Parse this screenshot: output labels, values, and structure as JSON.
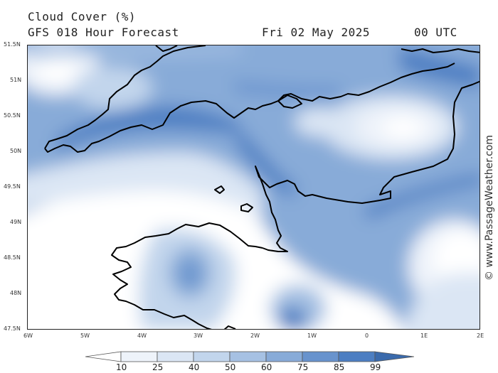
{
  "title": "Cloud Cover (%)",
  "subtitle": "GFS 018 Hour Forecast",
  "date": "Fri 02 May 2025",
  "time": "00 UTC",
  "credit": "© www.PassageWeather.com",
  "lat_labels": [
    "51.5N",
    "51N",
    "50.5N",
    "50N",
    "49.5N",
    "49N",
    "48.5N",
    "48N",
    "47.5N"
  ],
  "lon_labels": [
    "6W",
    "5W",
    "4W",
    "3W",
    "2W",
    "1W",
    "0",
    "1E",
    "2E"
  ],
  "legend": {
    "ticks": [
      "10",
      "25",
      "40",
      "50",
      "60",
      "75",
      "85",
      "99"
    ],
    "colors": [
      "#ffffff",
      "#eef3fa",
      "#dbe6f4",
      "#c2d5ec",
      "#a6c1e3",
      "#88abd8",
      "#6893cd",
      "#4c7ec2",
      "#3a6aac"
    ]
  },
  "chart_data": {
    "type": "heatmap",
    "variable": "Cloud Cover (%)",
    "lat_range": [
      47.5,
      51.5
    ],
    "lon_range": [
      -6,
      2
    ],
    "scale_levels": [
      10,
      25,
      40,
      50,
      60,
      75,
      85,
      99
    ]
  }
}
